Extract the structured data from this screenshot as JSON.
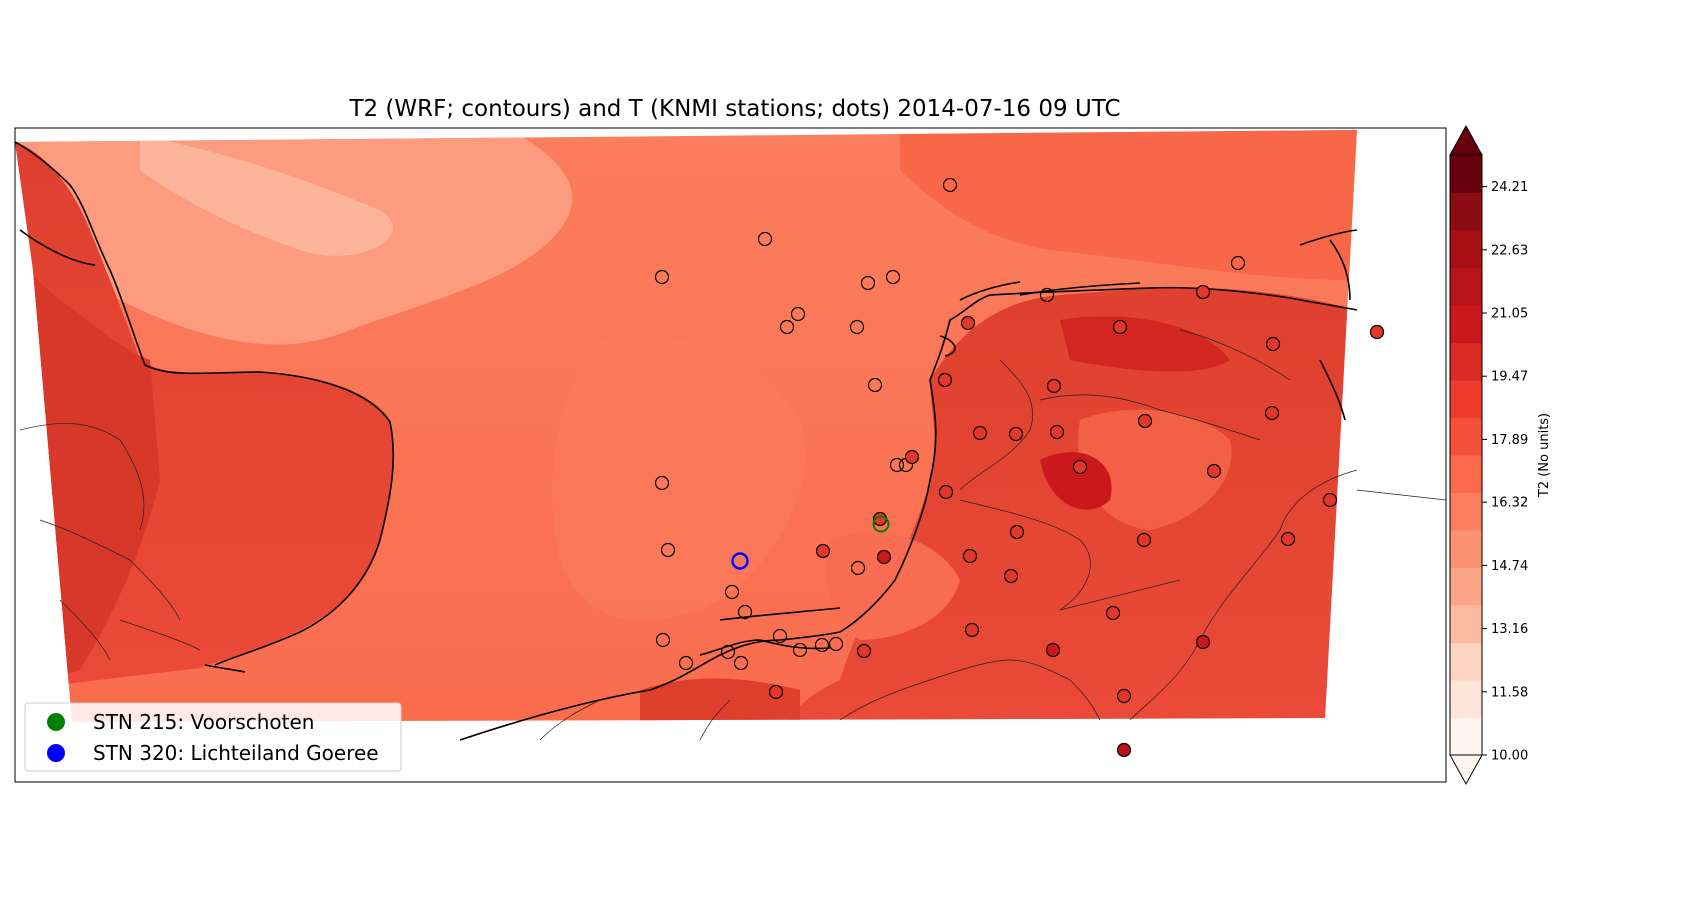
{
  "title": "T2 (WRF; contours) and T (KNMI stations; dots) 2014-07-16 09 UTC",
  "colorbar": {
    "label": "T2 (No units)",
    "ticks": [
      "24.21",
      "22.63",
      "21.05",
      "19.47",
      "17.89",
      "16.32",
      "14.74",
      "13.16",
      "11.58",
      "10.00"
    ],
    "min": 10.0,
    "max": 25.0,
    "extend": "max",
    "colormap": "Reds",
    "colors": [
      "#fff5f0",
      "#fee5d9",
      "#fdd4c2",
      "#fcbba1",
      "#fca689",
      "#fc9272",
      "#fb7e5e",
      "#fb6a4a",
      "#f4503a",
      "#ef3b2c",
      "#d92a24",
      "#cb181d",
      "#b91319",
      "#a50f15",
      "#8a0b12",
      "#67000d"
    ]
  },
  "legend": {
    "position": "lower-left",
    "items": [
      {
        "label": "STN 215: Voorschoten",
        "color": "#008000"
      },
      {
        "label": "STN 320: Lichteiland Goeree",
        "color": "#0000ff"
      }
    ]
  },
  "chart_data": {
    "type": "map",
    "field": "T2",
    "time": "2014-07-16 09 UTC",
    "highlighted_stations": [
      {
        "id": 215,
        "name": "Voorschoten",
        "color": "#008000"
      },
      {
        "id": 320,
        "name": "Lichteiland Goeree",
        "color": "#0000ff"
      }
    ]
  }
}
